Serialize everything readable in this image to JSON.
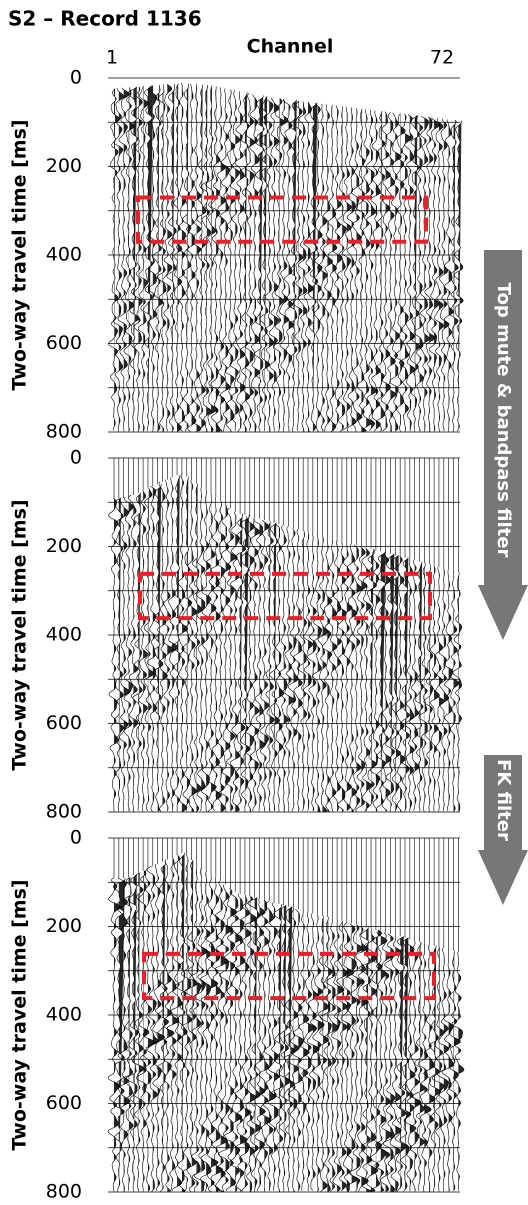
{
  "title": "S2 – Record 1136",
  "x_axis": {
    "label": "Channel",
    "first": 1,
    "last": 72
  },
  "panels": [
    {
      "y_label": "Two-way travel time [ms]",
      "ylim": [
        0,
        800
      ],
      "yticks": [
        0,
        200,
        400,
        600,
        800
      ]
    },
    {
      "y_label": "Two-way travel time [ms]",
      "ylim": [
        0,
        800
      ],
      "yticks": [
        0,
        200,
        400,
        600,
        800
      ]
    },
    {
      "y_label": "Two-way travel time [ms]",
      "ylim": [
        0,
        800
      ],
      "yticks": [
        0,
        200,
        400,
        600,
        800
      ]
    }
  ],
  "arrows": [
    "Top mute & bandpass filter",
    "FK filter"
  ]
}
